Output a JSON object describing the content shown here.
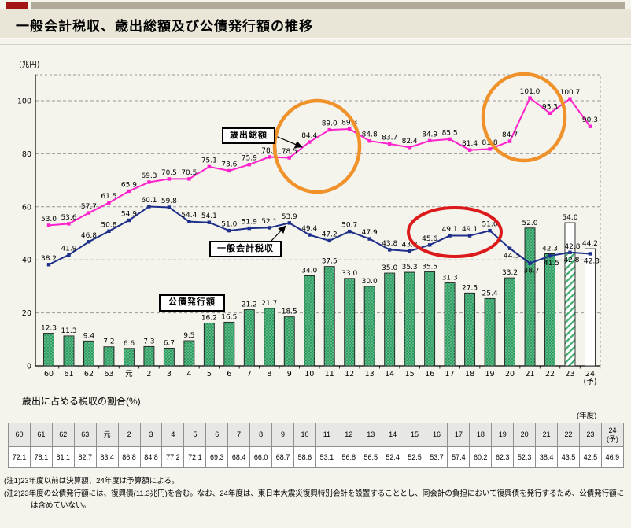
{
  "header": {
    "title": "一般会計税収、歳出総額及び公債発行額の推移"
  },
  "chart_data": {
    "type": "bar+line combo",
    "unit_label": "(兆円)",
    "x_unit_label": "(年度)",
    "categories": [
      "60",
      "61",
      "62",
      "63",
      "元",
      "2",
      "3",
      "4",
      "5",
      "6",
      "7",
      "8",
      "9",
      "10",
      "11",
      "12",
      "13",
      "14",
      "15",
      "16",
      "17",
      "18",
      "19",
      "20",
      "21",
      "22",
      "23",
      "24(予)"
    ],
    "ylim": [
      0,
      110
    ],
    "yticks": [
      0,
      20,
      40,
      60,
      80,
      100
    ],
    "grid": true,
    "series": [
      {
        "name": "歳出総額",
        "type": "line",
        "color": "#ff22cc",
        "values": [
          53.0,
          53.6,
          57.7,
          61.5,
          65.9,
          69.3,
          70.5,
          70.5,
          75.1,
          73.6,
          75.9,
          78.8,
          78.5,
          84.4,
          89.0,
          89.3,
          84.8,
          83.7,
          82.4,
          84.9,
          85.5,
          81.4,
          81.8,
          84.7,
          101.0,
          95.3,
          100.7,
          90.3
        ]
      },
      {
        "name": "一般会計税収",
        "type": "line",
        "color": "#1e2f8a",
        "values": [
          38.2,
          41.9,
          46.8,
          50.8,
          54.9,
          60.1,
          59.8,
          54.4,
          54.1,
          51.0,
          51.9,
          52.1,
          53.9,
          49.4,
          47.2,
          50.7,
          47.9,
          43.8,
          43.3,
          45.6,
          49.1,
          49.1,
          51.0,
          44.3,
          38.7,
          41.5,
          42.8,
          42.3
        ]
      },
      {
        "name": "公債発行額",
        "type": "bar",
        "color": "#2f9e63",
        "values": [
          12.3,
          11.3,
          9.4,
          7.2,
          6.6,
          7.3,
          6.7,
          9.5,
          16.2,
          16.5,
          21.2,
          21.7,
          18.5,
          34.0,
          37.5,
          33.0,
          30.0,
          35.0,
          35.3,
          35.5,
          31.3,
          27.5,
          25.4,
          33.2,
          52.0,
          42.3,
          54.0,
          44.2
        ]
      }
    ],
    "bar_notes": {
      "hatched_category": "23",
      "hatched_lower_value": 42.8,
      "hatched_total": 54.0,
      "hollow_category": "24(予)",
      "hollow_value": 44.2
    }
  },
  "annotations": {
    "expenditure_label": "歳出総額",
    "tax_label": "一般会計税収",
    "bond_label": "公債発行額"
  },
  "ratio_table": {
    "title": "歳出に占める税収の割合(%)",
    "x_unit_label": "(年度)",
    "headers": [
      "60",
      "61",
      "62",
      "63",
      "元",
      "2",
      "3",
      "4",
      "5",
      "6",
      "7",
      "8",
      "9",
      "10",
      "11",
      "12",
      "13",
      "14",
      "15",
      "16",
      "17",
      "18",
      "19",
      "20",
      "21",
      "22",
      "23",
      "24(予)"
    ],
    "values": [
      "72.1",
      "78.1",
      "81.1",
      "82.7",
      "83.4",
      "86.8",
      "84.8",
      "77.2",
      "72.1",
      "69.3",
      "68.4",
      "66.0",
      "68.7",
      "58.6",
      "53.1",
      "56.8",
      "56.5",
      "52.4",
      "52.5",
      "53.7",
      "57.4",
      "60.2",
      "62.3",
      "52.3",
      "38.4",
      "43.5",
      "42.5",
      "46.9"
    ]
  },
  "notes": {
    "note1": "(注1)23年度以前は決算額、24年度は予算額による。",
    "note2": "(注2)23年度の公債発行額には、復興債(11.3兆円)を含む。なお、24年度は、東日本大震災復興特別会計を設置することとし、同会計の負担において復興債を発行するため、公債発行額には含めていない。"
  }
}
